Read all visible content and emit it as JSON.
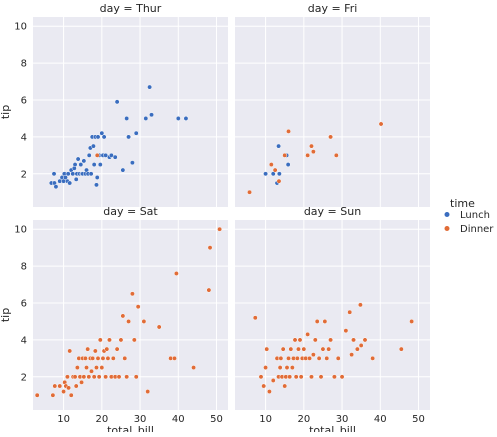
{
  "chart_data": {
    "type": "scatter",
    "figure_kind": "facet_grid",
    "x_label": "total_bill",
    "y_label": "tip",
    "xlim": [
      2,
      53
    ],
    "ylim": [
      0.2,
      10.5
    ],
    "x_ticks": [
      10,
      20,
      30,
      40,
      50
    ],
    "y_ticks": [
      2,
      4,
      6,
      8,
      10
    ],
    "grid": true,
    "shared_axes": true,
    "legend": {
      "title": "time",
      "placement": "right",
      "entries": [
        {
          "label": "Lunch",
          "color": "#3a6dbf"
        },
        {
          "label": "Dinner",
          "color": "#e16c37"
        }
      ]
    },
    "colors": {
      "panel_background": "#eaeaf2",
      "grid": "#ffffff",
      "text": "#262626"
    },
    "panels": [
      {
        "title": "day = Thur",
        "series": [
          {
            "name": "Lunch",
            "points": [
              [
                6.8,
                1.5
              ],
              [
                7.5,
                2.0
              ],
              [
                7.6,
                1.5
              ],
              [
                8.0,
                1.3
              ],
              [
                9.0,
                1.6
              ],
              [
                9.6,
                1.8
              ],
              [
                10.0,
                1.6
              ],
              [
                10.2,
                2.0
              ],
              [
                10.5,
                1.8
              ],
              [
                11.0,
                1.6
              ],
              [
                11.2,
                2.0
              ],
              [
                11.6,
                1.5
              ],
              [
                12.0,
                2.2
              ],
              [
                12.4,
                2.0
              ],
              [
                12.8,
                2.3
              ],
              [
                13.0,
                2.5
              ],
              [
                13.3,
                1.7
              ],
              [
                13.5,
                2.0
              ],
              [
                13.8,
                2.8
              ],
              [
                14.2,
                2.0
              ],
              [
                14.5,
                2.5
              ],
              [
                14.8,
                2.0
              ],
              [
                15.0,
                2.0
              ],
              [
                15.3,
                2.7
              ],
              [
                15.7,
                2.0
              ],
              [
                16.0,
                2.2
              ],
              [
                16.4,
                2.0
              ],
              [
                16.7,
                3.0
              ],
              [
                17.0,
                3.4
              ],
              [
                17.2,
                2.0
              ],
              [
                17.5,
                4.0
              ],
              [
                17.8,
                3.5
              ],
              [
                18.0,
                2.5
              ],
              [
                18.3,
                4.0
              ],
              [
                18.6,
                1.4
              ],
              [
                18.8,
                1.8
              ],
              [
                19.0,
                4.0
              ],
              [
                19.3,
                3.0
              ],
              [
                19.6,
                2.5
              ],
              [
                20.0,
                4.2
              ],
              [
                20.3,
                3.0
              ],
              [
                20.6,
                4.0
              ],
              [
                21.0,
                3.0
              ],
              [
                22.0,
                2.9
              ],
              [
                22.5,
                3.0
              ],
              [
                23.5,
                2.9
              ],
              [
                24.0,
                5.9
              ],
              [
                25.5,
                2.2
              ],
              [
                26.5,
                5.0
              ],
              [
                27.0,
                4.0
              ],
              [
                28.0,
                2.6
              ],
              [
                29.0,
                4.2
              ],
              [
                31.5,
                5.0
              ],
              [
                32.5,
                6.7
              ],
              [
                33.0,
                5.2
              ],
              [
                40.0,
                5.0
              ],
              [
                42.0,
                5.0
              ]
            ]
          },
          {
            "name": "Dinner",
            "points": [
              [
                18.8,
                3.0
              ]
            ]
          }
        ]
      },
      {
        "title": "day = Fri",
        "series": [
          {
            "name": "Lunch",
            "points": [
              [
                10.0,
                2.0
              ],
              [
                12.0,
                2.0
              ],
              [
                13.0,
                1.5
              ],
              [
                13.4,
                3.5
              ],
              [
                13.6,
                2.0
              ],
              [
                15.5,
                3.0
              ],
              [
                15.9,
                2.5
              ]
            ]
          },
          {
            "name": "Dinner",
            "points": [
              [
                5.8,
                1.0
              ],
              [
                11.5,
                2.5
              ],
              [
                12.5,
                2.2
              ],
              [
                13.5,
                1.6
              ],
              [
                15.0,
                3.0
              ],
              [
                16.0,
                4.3
              ],
              [
                21.0,
                3.0
              ],
              [
                22.0,
                3.5
              ],
              [
                22.5,
                3.2
              ],
              [
                27.0,
                4.0
              ],
              [
                28.5,
                3.0
              ],
              [
                40.2,
                4.7
              ]
            ]
          }
        ]
      },
      {
        "title": "day = Sat",
        "series": [
          {
            "name": "Dinner",
            "points": [
              [
                3.1,
                1.0
              ],
              [
                7.2,
                1.0
              ],
              [
                7.7,
                1.5
              ],
              [
                9.0,
                1.5
              ],
              [
                10.0,
                1.2
              ],
              [
                10.3,
                1.7
              ],
              [
                10.6,
                1.5
              ],
              [
                11.0,
                2.0
              ],
              [
                11.3,
                1.4
              ],
              [
                11.6,
                3.4
              ],
              [
                12.0,
                1.0
              ],
              [
                12.5,
                2.0
              ],
              [
                13.0,
                2.0
              ],
              [
                13.3,
                1.5
              ],
              [
                13.6,
                2.5
              ],
              [
                14.0,
                3.0
              ],
              [
                14.3,
                2.0
              ],
              [
                14.7,
                1.7
              ],
              [
                15.0,
                3.0
              ],
              [
                15.3,
                2.0
              ],
              [
                15.7,
                3.0
              ],
              [
                16.0,
                2.5
              ],
              [
                16.3,
                3.5
              ],
              [
                16.6,
                2.0
              ],
              [
                17.0,
                3.0
              ],
              [
                17.3,
                2.3
              ],
              [
                17.6,
                3.0
              ],
              [
                18.0,
                2.0
              ],
              [
                18.3,
                3.4
              ],
              [
                18.6,
                2.5
              ],
              [
                19.0,
                3.0
              ],
              [
                19.3,
                2.0
              ],
              [
                19.6,
                4.0
              ],
              [
                20.0,
                2.5
              ],
              [
                20.3,
                3.0
              ],
              [
                20.6,
                3.4
              ],
              [
                21.0,
                2.0
              ],
              [
                21.3,
                3.5
              ],
              [
                21.6,
                3.0
              ],
              [
                22.0,
                4.0
              ],
              [
                22.5,
                2.0
              ],
              [
                23.0,
                3.0
              ],
              [
                23.5,
                2.0
              ],
              [
                24.0,
                3.5
              ],
              [
                24.5,
                2.0
              ],
              [
                25.0,
                4.0
              ],
              [
                25.5,
                5.3
              ],
              [
                26.0,
                3.0
              ],
              [
                26.5,
                2.0
              ],
              [
                27.0,
                5.0
              ],
              [
                28.0,
                6.5
              ],
              [
                28.5,
                4.0
              ],
              [
                29.0,
                2.0
              ],
              [
                29.5,
                5.8
              ],
              [
                31.0,
                5.0
              ],
              [
                32.0,
                1.2
              ],
              [
                35.0,
                4.7
              ],
              [
                38.0,
                3.0
              ],
              [
                39.0,
                3.0
              ],
              [
                39.5,
                7.6
              ],
              [
                44.0,
                2.5
              ],
              [
                48.0,
                6.7
              ],
              [
                48.3,
                9.0
              ],
              [
                50.8,
                10.0
              ]
            ]
          }
        ]
      },
      {
        "title": "day = Sun",
        "series": [
          {
            "name": "Dinner",
            "points": [
              [
                7.3,
                5.2
              ],
              [
                8.8,
                2.0
              ],
              [
                9.5,
                1.5
              ],
              [
                10.0,
                2.5
              ],
              [
                10.3,
                3.5
              ],
              [
                11.0,
                1.2
              ],
              [
                12.0,
                1.8
              ],
              [
                13.0,
                3.0
              ],
              [
                13.4,
                2.0
              ],
              [
                13.8,
                2.5
              ],
              [
                14.0,
                3.0
              ],
              [
                14.3,
                2.0
              ],
              [
                14.6,
                3.5
              ],
              [
                15.0,
                1.5
              ],
              [
                15.3,
                2.0
              ],
              [
                15.6,
                2.5
              ],
              [
                16.0,
                3.0
              ],
              [
                16.3,
                2.0
              ],
              [
                16.6,
                3.5
              ],
              [
                17.0,
                2.5
              ],
              [
                17.3,
                3.0
              ],
              [
                17.7,
                4.0
              ],
              [
                18.0,
                2.0
              ],
              [
                18.3,
                3.0
              ],
              [
                18.6,
                3.5
              ],
              [
                19.0,
                4.0
              ],
              [
                19.3,
                2.0
              ],
              [
                19.6,
                3.0
              ],
              [
                20.0,
                3.5
              ],
              [
                20.5,
                3.0
              ],
              [
                21.0,
                4.3
              ],
              [
                21.5,
                3.0
              ],
              [
                22.0,
                2.0
              ],
              [
                22.5,
                3.2
              ],
              [
                23.0,
                4.0
              ],
              [
                23.5,
                5.0
              ],
              [
                24.0,
                3.0
              ],
              [
                24.5,
                2.0
              ],
              [
                25.0,
                3.5
              ],
              [
                25.5,
                5.0
              ],
              [
                26.0,
                3.0
              ],
              [
                26.5,
                3.5
              ],
              [
                27.0,
                4.0
              ],
              [
                28.0,
                2.0
              ],
              [
                29.0,
                3.0
              ],
              [
                30.0,
                2.0
              ],
              [
                31.0,
                4.5
              ],
              [
                32.0,
                5.5
              ],
              [
                32.5,
                3.2
              ],
              [
                33.0,
                4.0
              ],
              [
                34.0,
                3.5
              ],
              [
                35.0,
                3.7
              ],
              [
                36.0,
                4.0
              ],
              [
                38.0,
                3.0
              ],
              [
                45.5,
                3.5
              ],
              [
                48.2,
                5.0
              ],
              [
                34.8,
                5.9
              ]
            ]
          }
        ]
      }
    ]
  }
}
